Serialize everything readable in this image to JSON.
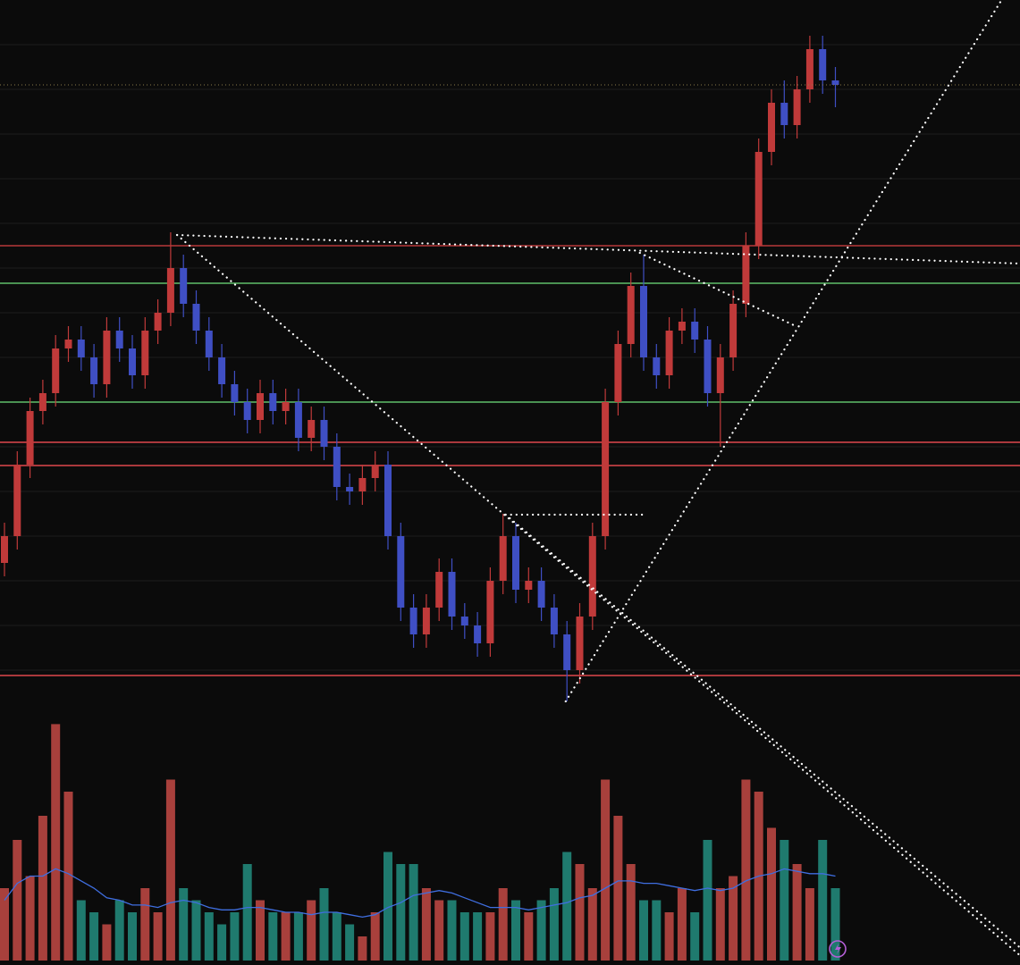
{
  "chart_data": {
    "type": "candlestick",
    "ylim": [
      20,
      100
    ],
    "yticks": [
      25,
      30,
      35,
      40,
      45,
      50,
      55,
      60,
      65,
      70,
      75,
      80,
      85,
      90,
      95
    ],
    "grid": true,
    "up_color": "#c03a3a",
    "down_color": "#3f4fc4",
    "open": [
      37,
      40,
      48,
      54,
      56,
      61,
      62,
      60,
      57,
      63,
      61,
      58,
      63,
      65,
      70,
      66,
      63,
      60,
      57,
      55,
      53,
      56,
      54,
      55,
      51,
      53,
      50,
      45.5,
      45,
      46.5,
      48,
      40,
      32,
      29,
      32,
      36,
      31,
      30,
      28,
      35,
      40,
      34,
      35,
      32,
      29,
      25,
      31,
      40,
      55,
      61.5,
      68,
      60,
      58,
      63,
      64,
      62,
      56,
      60,
      66,
      72.5,
      83,
      88.5,
      86,
      90,
      94.5,
      91
    ],
    "high": [
      41.5,
      49.5,
      55.5,
      57.5,
      62.5,
      63.5,
      63.5,
      61.5,
      64.5,
      64.5,
      62.5,
      64.5,
      66.5,
      74,
      71.5,
      67.5,
      64.5,
      61.5,
      58.5,
      56.5,
      57.5,
      57.5,
      56.5,
      56.5,
      54.5,
      54.5,
      51.5,
      47,
      48,
      49.5,
      49.5,
      41.5,
      33.5,
      33.5,
      37.5,
      37.5,
      32.5,
      31.5,
      36.5,
      42.5,
      41.5,
      36.5,
      36.5,
      33.5,
      30.5,
      32.5,
      41.5,
      56.5,
      63,
      69.5,
      71.5,
      61.5,
      64.5,
      65.5,
      65.5,
      63.5,
      61.5,
      67.5,
      74,
      84.5,
      90,
      91,
      91.5,
      96,
      96,
      92.5
    ],
    "low": [
      35.5,
      38.5,
      46.5,
      52.5,
      54.5,
      59.5,
      58.5,
      55.5,
      55.5,
      59.5,
      56.5,
      56.5,
      61.5,
      63.5,
      64.5,
      61.5,
      58.5,
      55.5,
      53.5,
      51.5,
      51.5,
      52.5,
      52.5,
      49.5,
      49.5,
      48.5,
      44,
      43.5,
      43.5,
      45,
      38.5,
      30.5,
      27.5,
      27.5,
      30.5,
      29.5,
      28.5,
      26.5,
      26.5,
      33.5,
      32.5,
      32.5,
      30.5,
      27.5,
      21.5,
      23.5,
      29.5,
      38.5,
      53.5,
      60,
      58.5,
      56.5,
      56.5,
      61.5,
      60.5,
      54.5,
      50,
      58.5,
      64.5,
      71,
      81.5,
      84.5,
      84.5,
      88.5,
      89.5,
      88
    ],
    "close": [
      40,
      48,
      54,
      56,
      61,
      62,
      60,
      57,
      63,
      61,
      58,
      63,
      65,
      70,
      66,
      63,
      60,
      57,
      55,
      53,
      56,
      54,
      55,
      51,
      53,
      50,
      45.5,
      45,
      46.5,
      48,
      40,
      32,
      29,
      32,
      36,
      31,
      30,
      28,
      35,
      40,
      34,
      35,
      32,
      29,
      25,
      31,
      40,
      55,
      61.5,
      68,
      60,
      58,
      63,
      64,
      62,
      56,
      60,
      66,
      72.5,
      83,
      88.5,
      86,
      90,
      94.5,
      91,
      90.5
    ],
    "levels": [
      {
        "value": 72.5,
        "color": "#b8393b"
      },
      {
        "value": 68.3,
        "color": "#5fbf6a"
      },
      {
        "value": 55,
        "color": "#5fbf6a"
      },
      {
        "value": 50.5,
        "color": "#e0474c"
      },
      {
        "value": 47.9,
        "color": "#e0474c"
      },
      {
        "value": 24.4,
        "color": "#e0474c"
      }
    ],
    "trendlines": [
      {
        "x": [
          13.5,
          79.5
        ],
        "y": [
          73.7,
          70.5
        ]
      },
      {
        "x": [
          13.5,
          79.5
        ],
        "y": [
          73.7,
          -7
        ]
      },
      {
        "x": [
          49.7,
          61.9
        ],
        "y": [
          71.7,
          63.5
        ]
      },
      {
        "x": [
          39.2,
          79.4
        ],
        "y": [
          42.4,
          -6
        ]
      },
      {
        "x": [
          39.2,
          50
        ],
        "y": [
          42.4,
          42.4
        ]
      },
      {
        "x": [
          43.9,
          78
        ],
        "y": [
          21.5,
          100
        ]
      }
    ],
    "volume": {
      "ylim": [
        0,
        100
      ],
      "up_color": "#a8403c",
      "down_color": "#1f7a6e",
      "values": [
        30,
        50,
        35,
        60,
        98,
        70,
        25,
        20,
        15,
        25,
        20,
        30,
        20,
        75,
        30,
        25,
        20,
        15,
        20,
        40,
        25,
        20,
        20,
        20,
        25,
        30,
        20,
        15,
        10,
        20,
        45,
        40,
        40,
        30,
        25,
        25,
        20,
        20,
        20,
        30,
        25,
        20,
        25,
        30,
        45,
        40,
        30,
        75,
        60,
        40,
        25,
        25,
        20,
        30,
        20,
        50,
        30,
        35,
        75,
        70,
        55,
        50,
        40,
        30,
        50,
        30
      ],
      "ma": {
        "color": "#3f6ee0",
        "values": [
          25,
          32,
          35,
          35,
          38,
          36,
          33,
          30,
          26,
          25,
          23,
          23,
          22,
          24,
          25,
          24,
          22,
          21,
          21,
          22,
          22,
          21,
          20,
          20,
          19,
          20,
          20,
          19,
          18,
          19,
          22,
          24,
          27,
          28,
          29,
          28,
          26,
          24,
          22,
          22,
          22,
          21,
          22,
          23,
          24,
          26,
          27,
          30,
          33,
          33,
          32,
          32,
          31,
          30,
          29,
          30,
          29,
          30,
          33,
          35,
          36,
          38,
          37,
          36,
          36,
          35
        ]
      }
    }
  }
}
